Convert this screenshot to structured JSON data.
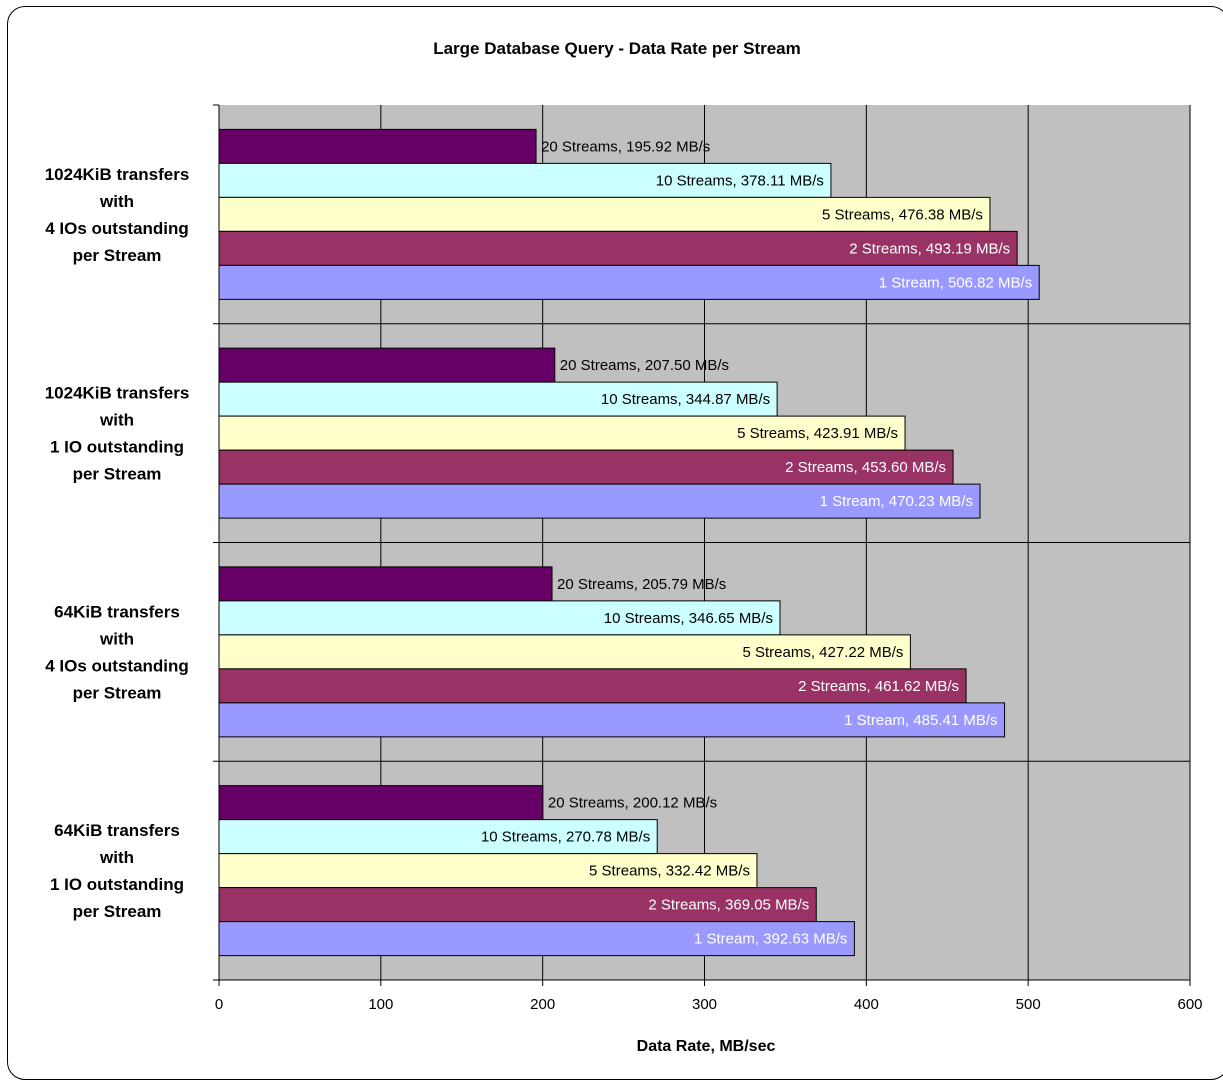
{
  "chart_data": {
    "type": "bar",
    "orientation": "horizontal",
    "title": "Large Database Query - Data Rate per Stream",
    "xlabel": "Data Rate, MB/sec",
    "ylabel": "",
    "xlim": [
      0,
      600
    ],
    "xticks": [
      "0",
      "100",
      "200",
      "300",
      "400",
      "500",
      "600"
    ],
    "grid": true,
    "legend": "none",
    "categories": [
      [
        "1024KiB transfers",
        "with",
        "4 IOs outstanding",
        "per Stream"
      ],
      [
        "1024KiB transfers",
        "with",
        "1 IO outstanding",
        "per Stream"
      ],
      [
        "64KiB transfers",
        "with",
        "4 IOs outstanding",
        "per Stream"
      ],
      [
        "64KiB transfers",
        "with",
        "1 IO outstanding",
        "per Stream"
      ]
    ],
    "series": [
      {
        "name": "20 Streams",
        "color": "#660066",
        "text_color": "#000000",
        "values": [
          195.92,
          207.5,
          205.79,
          200.12
        ]
      },
      {
        "name": "10 Streams",
        "color": "#CCFFFF",
        "text_color": "#000000",
        "values": [
          378.11,
          344.87,
          346.65,
          270.78
        ]
      },
      {
        "name": "5 Streams",
        "color": "#FFFFCC",
        "text_color": "#000000",
        "values": [
          476.38,
          423.91,
          427.22,
          332.42
        ]
      },
      {
        "name": "2 Streams",
        "color": "#993366",
        "text_color": "#FFFFFF",
        "values": [
          493.19,
          453.6,
          461.62,
          369.05
        ]
      },
      {
        "name": "1 Stream",
        "color": "#9999FF",
        "text_color": "#FFFFFF",
        "values": [
          506.82,
          470.23,
          485.41,
          392.63
        ]
      }
    ],
    "data_labels": [
      [
        "20 Streams, 195.92  MB/s",
        "10 Streams, 378.11  MB/s",
        "5 Streams, 476.38  MB/s",
        "2 Streams, 493.19  MB/s",
        "1 Stream, 506.82  MB/s"
      ],
      [
        "20 Streams, 207.50  MB/s",
        "10 Streams, 344.87  MB/s",
        "5 Streams, 423.91  MB/s",
        "2 Streams, 453.60  MB/s",
        "1 Stream, 470.23  MB/s"
      ],
      [
        "20 Streams, 205.79  MB/s",
        "10 Streams, 346.65  MB/s",
        "5 Streams, 427.22  MB/s",
        "2 Streams, 461.62  MB/s",
        "1 Stream, 485.41  MB/s"
      ],
      [
        "20 Streams, 200.12  MB/s",
        "10 Streams, 270.78  MB/s",
        "5 Streams, 332.42  MB/s",
        "2 Streams, 369.05  MB/s",
        "1 Stream, 392.63  MB/s"
      ]
    ],
    "plot_background": "#C0C0C0"
  }
}
